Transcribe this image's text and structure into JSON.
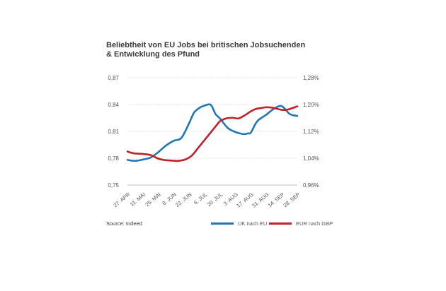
{
  "chart_data": {
    "type": "line",
    "title_lines": [
      "Beliebtheit von EU Jobs bei britischen Jobsuchenden",
      "& Entwicklung des Pfund"
    ],
    "categories": [
      "27. APR",
      "11. MAI",
      "25. MAI",
      "8. JUN",
      "22. JUN",
      "6. JUL",
      "20. JUL",
      "3. AUG",
      "17. AUG",
      "31. AUG",
      "14. SEP",
      "28. SEP"
    ],
    "y_left": {
      "ticks": [
        0.75,
        0.78,
        0.81,
        0.84,
        0.87
      ],
      "tick_labels": [
        "0,75",
        "0,78",
        "0,81",
        "0,84",
        "0,87"
      ],
      "range": [
        0.75,
        0.87
      ]
    },
    "y_right": {
      "ticks": [
        0.96,
        1.04,
        1.12,
        1.2,
        1.28
      ],
      "tick_labels": [
        "0,96%",
        "1,04%",
        "1,12%",
        "1,20%",
        "1,28%"
      ],
      "range": [
        0.96,
        1.28
      ]
    },
    "grid": "horizontal",
    "series": [
      {
        "name": "UK nach EU",
        "axis": "right",
        "color": "#1f77b4",
        "x": [
          0,
          0.5,
          1,
          1.5,
          2,
          2.5,
          3,
          3.5,
          4,
          4.3,
          4.6,
          5,
          5.4,
          5.7,
          6,
          6.5,
          7,
          7.5,
          7.8,
          8,
          8.4,
          9,
          9.5,
          10,
          10.5,
          11
        ],
        "y": [
          1.035,
          1.032,
          1.036,
          1.042,
          1.058,
          1.078,
          1.092,
          1.101,
          1.145,
          1.175,
          1.188,
          1.197,
          1.199,
          1.172,
          1.158,
          1.13,
          1.118,
          1.112,
          1.114,
          1.117,
          1.15,
          1.17,
          1.188,
          1.195,
          1.172,
          1.166
        ]
      },
      {
        "name": "EUR nach GBP",
        "axis": "left",
        "color": "#c0202a",
        "x": [
          0,
          0.4,
          1,
          1.5,
          2,
          2.4,
          3,
          3.3,
          3.8,
          4.2,
          4.6,
          5,
          5.4,
          5.8,
          6,
          6.4,
          6.8,
          7.2,
          7.6,
          8,
          8.3,
          8.7,
          9,
          9.4,
          10,
          10.4,
          11
        ],
        "y": [
          0.7875,
          0.7855,
          0.7848,
          0.7835,
          0.7795,
          0.778,
          0.7772,
          0.777,
          0.779,
          0.7835,
          0.792,
          0.8005,
          0.809,
          0.8175,
          0.8215,
          0.8245,
          0.8252,
          0.8245,
          0.828,
          0.8325,
          0.835,
          0.8362,
          0.837,
          0.8364,
          0.834,
          0.8345,
          0.838
        ]
      }
    ],
    "source": "Source: Indeed",
    "legend": [
      {
        "label": "UK nach EU",
        "color": "#1f77b4"
      },
      {
        "label": "EUR nach GBP",
        "color": "#c0202a"
      }
    ]
  }
}
